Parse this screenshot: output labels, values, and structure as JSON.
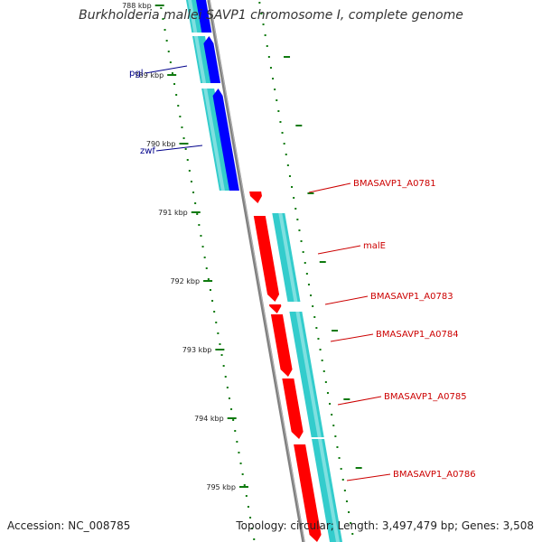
{
  "title": "Burkholderia mallei SAVP1 chromosome I, complete genome",
  "footer": {
    "accession": "Accession: NC_008785",
    "summary": "Topology: circular; Length: 3,497,479 bp; Genes: 3,508"
  },
  "colors": {
    "forward_gene": "#0000ff",
    "reverse_gene": "#ff0000",
    "cds": "#33cccc",
    "backbone": "#808080",
    "gc_dots": "#0f7a0f",
    "forward_label": "#00008b",
    "reverse_label": "#cc0000"
  },
  "tick_labels": [
    "788 kbp",
    "789 kbp",
    "790 kbp",
    "791 kbp",
    "792 kbp",
    "793 kbp",
    "794 kbp",
    "795 kbp"
  ],
  "forward_genes": [
    {
      "label": "pgl"
    },
    {
      "label": "zwf"
    }
  ],
  "reverse_genes": [
    {
      "label": "BMASAVP1_A0781"
    },
    {
      "label": "malE"
    },
    {
      "label": "BMASAVP1_A0783"
    },
    {
      "label": "BMASAVP1_A0784"
    },
    {
      "label": "BMASAVP1_A0785"
    },
    {
      "label": "BMASAVP1_A0786"
    }
  ]
}
